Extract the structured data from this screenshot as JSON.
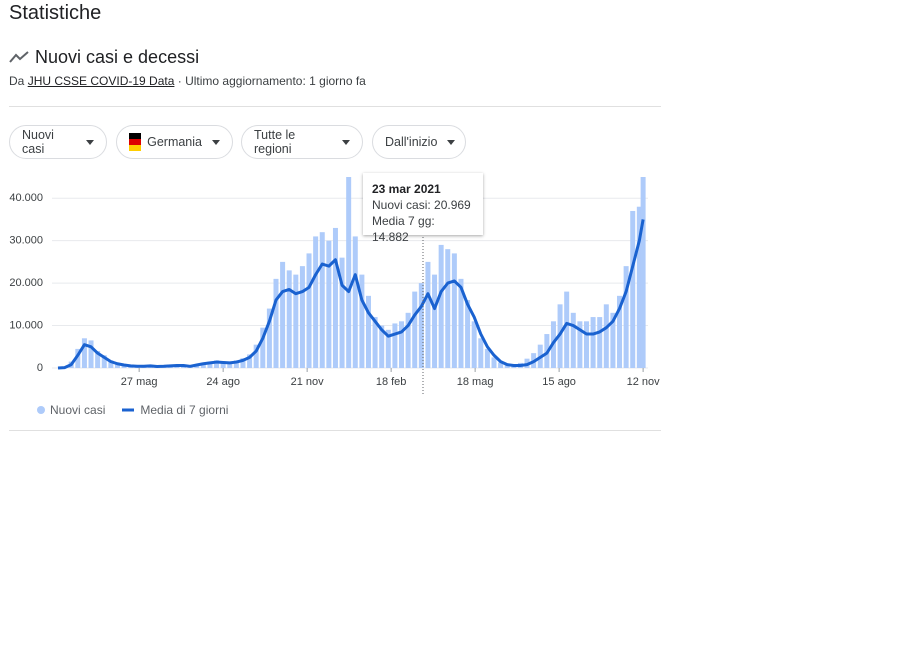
{
  "header": {
    "title": "Statistiche"
  },
  "section": {
    "title": "Nuovi casi e decessi",
    "source": {
      "prefix": "Da",
      "link": "JHU CSSE COVID-19 Data",
      "suffix": "· Ultimo aggiornamento: 1 giorno fa"
    }
  },
  "filters": [
    "Nuovi casi",
    "Germania",
    "Tutte le regioni",
    "Dall'inizio"
  ],
  "tooltip": {
    "date": "23 mar 2021",
    "lines": [
      "Nuovi casi: 20.969",
      "Media 7 gg: 14.882"
    ]
  },
  "chart_data": {
    "type": "bar-line",
    "x": [
      0,
      7,
      14,
      21,
      28,
      35,
      42,
      49,
      56,
      63,
      70,
      77,
      84,
      91,
      98,
      105,
      112,
      119,
      126,
      133,
      140,
      147,
      154,
      161,
      168,
      175,
      182,
      189,
      196,
      203,
      210,
      217,
      224,
      231,
      238,
      245,
      252,
      259,
      266,
      273,
      280,
      287,
      294,
      301,
      308,
      315,
      322,
      329,
      336,
      343,
      350,
      357,
      364,
      371,
      378,
      385,
      392,
      399,
      406,
      413,
      420,
      427,
      434,
      441,
      448,
      455,
      462,
      469,
      476,
      483,
      490,
      497,
      504,
      511,
      518,
      525,
      532,
      539,
      546,
      553,
      560,
      567,
      574,
      581,
      588,
      595,
      602,
      609,
      616,
      620
    ],
    "series": [
      {
        "name": "Nuovi casi",
        "type": "bar",
        "color": "#aecbfa",
        "values": [
          0,
          200,
          1500,
          4500,
          7000,
          6500,
          4000,
          3000,
          1800,
          1200,
          900,
          600,
          500,
          600,
          700,
          500,
          500,
          700,
          800,
          700,
          500,
          900,
          1300,
          1500,
          1800,
          1600,
          1500,
          1800,
          2300,
          3200,
          5500,
          9500,
          14000,
          21000,
          25000,
          23000,
          22000,
          24000,
          27000,
          31000,
          32000,
          30000,
          33000,
          26000,
          45000,
          31000,
          22000,
          17000,
          12000,
          10000,
          9000,
          10500,
          11000,
          13000,
          18000,
          20000,
          25000,
          22000,
          29000,
          28000,
          27000,
          21000,
          16000,
          11000,
          7000,
          4500,
          2500,
          1300,
          900,
          900,
          1200,
          2200,
          3500,
          5500,
          8000,
          11000,
          15000,
          18000,
          13000,
          11000,
          11000,
          12000,
          12000,
          15000,
          13000,
          17000,
          24000,
          37000,
          38000,
          45000
        ]
      },
      {
        "name": "Media di 7 giorni",
        "type": "line",
        "color": "#1a62d0",
        "values": [
          0,
          100,
          800,
          3000,
          5500,
          5000,
          3500,
          2500,
          1500,
          1000,
          700,
          500,
          400,
          400,
          500,
          350,
          400,
          500,
          600,
          600,
          400,
          700,
          1000,
          1200,
          1400,
          1300,
          1200,
          1400,
          1800,
          2500,
          4000,
          7000,
          11000,
          16000,
          18000,
          18500,
          17500,
          18000,
          19000,
          22000,
          24500,
          24000,
          25500,
          19500,
          18000,
          22000,
          16000,
          13000,
          11000,
          9000,
          7500,
          8000,
          8500,
          10000,
          12500,
          14500,
          17500,
          14000,
          18000,
          20000,
          20500,
          19000,
          15000,
          12000,
          8000,
          5000,
          3000,
          1500,
          800,
          600,
          600,
          800,
          1500,
          2500,
          3500,
          6000,
          8000,
          10500,
          10000,
          9000,
          8000,
          8000,
          8500,
          9500,
          11000,
          14000,
          18000,
          24000,
          30000,
          35000
        ]
      }
    ],
    "xlim": [
      0,
      622
    ],
    "xticks": [
      {
        "value": 86,
        "label": "27 mag"
      },
      {
        "value": 175,
        "label": "24 ago"
      },
      {
        "value": 264,
        "label": "21 nov"
      },
      {
        "value": 353,
        "label": "18 feb"
      },
      {
        "value": 442,
        "label": "18 mag"
      },
      {
        "value": 531,
        "label": "15 ago"
      },
      {
        "value": 620,
        "label": "12 nov"
      }
    ],
    "ylim": [
      0,
      45000
    ],
    "yticks": [
      0,
      {
        "value": 10000,
        "label": "10.000"
      },
      {
        "value": 20000,
        "label": "20.000"
      },
      {
        "value": 30000,
        "label": "30.000"
      },
      {
        "value": 40000,
        "label": "40.000"
      }
    ],
    "grid": true,
    "legend": "bottom-left"
  }
}
